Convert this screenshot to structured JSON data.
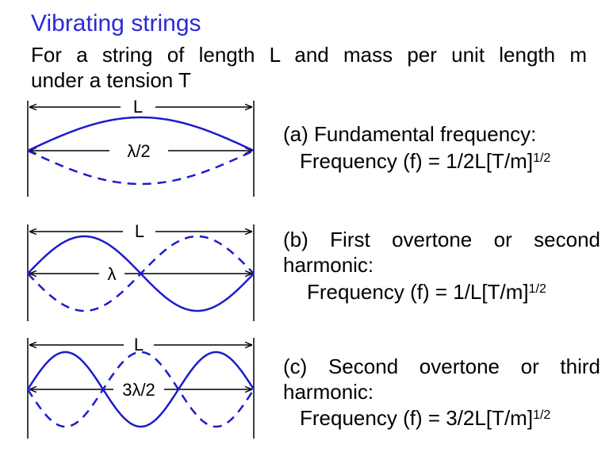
{
  "title": "Vibrating strings",
  "intro": {
    "line1": "For a string of length L and mass per unit length m",
    "line2": "under a tension T"
  },
  "panels": [
    {
      "length_label": "L",
      "wave_label": "λ/2",
      "half_waves": 1,
      "caption_line1": "(a) Fundamental frequency:",
      "caption_line2": "",
      "formula_main": "Frequency (f) = 1/2L[T/m]",
      "formula_exp": "1/2"
    },
    {
      "length_label": "L",
      "wave_label": "λ",
      "half_waves": 2,
      "caption_line1": "(b) First overtone or second",
      "caption_line2": "harmonic:",
      "formula_main": "Frequency (f) = 1/L[T/m]",
      "formula_exp": "1/2"
    },
    {
      "length_label": "L",
      "wave_label": "3λ/2",
      "half_waves": 3,
      "caption_line1": "(c) Second overtone or third",
      "caption_line2": "harmonic:",
      "formula_main": "Frequency (f) = 3/2L[T/m]",
      "formula_exp": "1/2"
    }
  ],
  "colors": {
    "title": "#2a2ad8",
    "wave": "#1c1ccc",
    "lines": "#000000"
  }
}
